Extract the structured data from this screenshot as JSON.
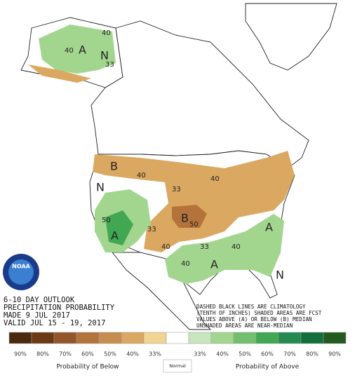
{
  "title_lines": [
    "6-10 DAY OUTLOOK",
    "PRECIPITATION PROBABILITY",
    "MADE  9 JUL 2017",
    "VALID  JUL 15 - 19, 2017"
  ],
  "note_lines": [
    "DASHED BLACK LINES ARE CLIMATOLOGY",
    "(TENTH OF INCHES) SHADED AREAS ARE FCST",
    "VALUES ABOVE (A) OR BELOW (B) MEDIAN",
    "UNSHADED AREAS ARE NEAR-MEDIAN"
  ],
  "logo": "NOAA",
  "map_labels": [
    "A",
    "N",
    "40",
    "40",
    "33",
    "B",
    "40",
    "40",
    "33",
    "N",
    "B",
    "50",
    "A",
    "50",
    "33",
    "40",
    "40",
    "A",
    "A",
    "N",
    "40",
    "33"
  ],
  "legend": {
    "below": [
      {
        "label": "90%",
        "color": "#4a2a0c"
      },
      {
        "label": "80%",
        "color": "#6c3a12"
      },
      {
        "label": "70%",
        "color": "#95552a"
      },
      {
        "label": "60%",
        "color": "#b5733c"
      },
      {
        "label": "50%",
        "color": "#c78d4f"
      },
      {
        "label": "40%",
        "color": "#dba861"
      },
      {
        "label": "33%",
        "color": "#f1d394"
      }
    ],
    "normal_color": "#ffffff",
    "above": [
      {
        "label": "33%",
        "color": "#c7e6bd"
      },
      {
        "label": "40%",
        "color": "#a2d68e"
      },
      {
        "label": "50%",
        "color": "#72c06e"
      },
      {
        "label": "60%",
        "color": "#42a752"
      },
      {
        "label": "70%",
        "color": "#258a4f"
      },
      {
        "label": "80%",
        "color": "#126e3d"
      },
      {
        "label": "90%",
        "color": "#235a20"
      }
    ],
    "below_caption": "Probability of Below",
    "normal_caption": "Normal",
    "above_caption": "Probability of Above"
  }
}
